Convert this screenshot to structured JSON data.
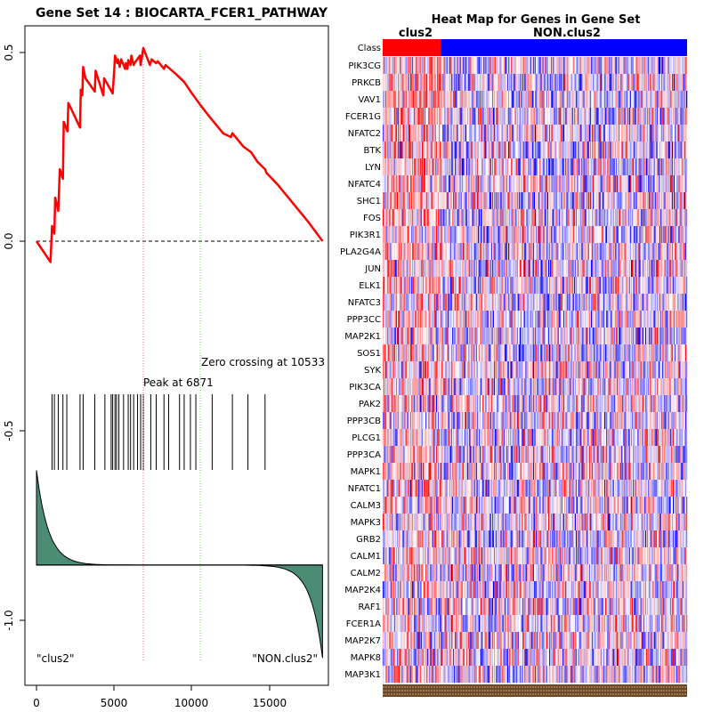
{
  "chart_data": [
    {
      "type": "line",
      "title": "Gene Set  14 : BIOCARTA_FCER1_PATHWAY",
      "xlabel": "",
      "ylabel": "",
      "xlim": [
        0,
        18500
      ],
      "ylim": [
        -1.14,
        0.57
      ],
      "x_ticks": [
        0,
        5000,
        10000,
        15000
      ],
      "x_tick_labels": [
        "0",
        "5000",
        "10000",
        "15000"
      ],
      "y_ticks": [
        -1.0,
        -0.5,
        0.0,
        0.5
      ],
      "y_tick_labels": [
        "-1.0",
        "-0.5",
        "0.0",
        "0.5"
      ],
      "enrichment_color": "#ff0000",
      "enrichment_profile": {
        "x": [
          0,
          900,
          1000,
          1150,
          1200,
          1400,
          1500,
          1700,
          1750,
          2000,
          2050,
          2800,
          2850,
          2950,
          3000,
          3150,
          3750,
          3800,
          4300,
          4350,
          4900,
          5000,
          5050,
          5200,
          5250,
          5350,
          5450,
          5700,
          5750,
          5850,
          5900,
          6050,
          6100,
          6250,
          6300,
          6650,
          6700,
          6871,
          7300,
          7400,
          7700,
          7800,
          8200,
          8300,
          9000,
          9500,
          10000,
          10533,
          11000,
          11500,
          12000,
          12500,
          12600,
          13000,
          13300,
          13800,
          14200,
          14700,
          14800,
          15500,
          16500,
          17500,
          18400
        ],
        "y": [
          0.0,
          -0.055,
          0.04,
          0.02,
          0.115,
          0.08,
          0.19,
          0.165,
          0.315,
          0.29,
          0.365,
          0.3,
          0.4,
          0.385,
          0.46,
          0.43,
          0.395,
          0.45,
          0.385,
          0.43,
          0.39,
          0.45,
          0.49,
          0.47,
          0.48,
          0.46,
          0.48,
          0.455,
          0.47,
          0.455,
          0.478,
          0.465,
          0.49,
          0.465,
          0.47,
          0.49,
          0.465,
          0.51,
          0.465,
          0.48,
          0.47,
          0.475,
          0.455,
          0.465,
          0.44,
          0.42,
          0.39,
          0.36,
          0.335,
          0.31,
          0.285,
          0.275,
          0.285,
          0.265,
          0.25,
          0.235,
          0.21,
          0.19,
          0.18,
          0.15,
          0.1,
          0.05,
          0.0
        ]
      },
      "hit_positions": [
        1000,
        1150,
        1400,
        1700,
        1950,
        2800,
        3000,
        3750,
        4400,
        4800,
        4900,
        5050,
        5150,
        5300,
        5600,
        5900,
        6050,
        6250,
        6500,
        6700,
        6871,
        7350,
        7700,
        8200,
        8500,
        9200,
        9500,
        9900,
        10250,
        11300,
        12600,
        13600,
        14700
      ],
      "peak": {
        "x": 6871,
        "label": "Peak at 6871",
        "color": "#ff6666"
      },
      "zero_crossing": {
        "x": 10533,
        "label": "Zero crossing at 10533",
        "color": "#66dd66"
      },
      "ranked_metric": {
        "color": "#4a8c74",
        "baseline": -0.855,
        "max": -0.605,
        "min": -1.1
      },
      "left_class_label": "\"clus2\"",
      "right_class_label": "\"NON.clus2\""
    },
    {
      "type": "heatmap",
      "title": "Heat Map for Genes in Gene Set",
      "class_row_label": "Class",
      "classes": [
        {
          "name": "clus2",
          "color": "#ff0000",
          "fraction": 0.19
        },
        {
          "name": "NON.clus2",
          "color": "#0000ff",
          "fraction": 0.81
        }
      ],
      "genes": [
        "PIK3CG",
        "PRKCB",
        "VAV1",
        "FCER1G",
        "NFATC2",
        "BTK",
        "LYN",
        "NFATC4",
        "SHC1",
        "FOS",
        "PIK3R1",
        "PLA2G4A",
        "JUN",
        "ELK1",
        "NFATC3",
        "PPP3CC",
        "MAP2K1",
        "SOS1",
        "SYK",
        "PIK3CA",
        "PAK2",
        "PPP3CB",
        "PLCG1",
        "PPP3CA",
        "MAPK1",
        "NFATC1",
        "CALM3",
        "MAPK3",
        "GRB2",
        "CALM1",
        "CALM2",
        "MAP2K4",
        "RAF1",
        "FCER1A",
        "MAP2K7",
        "MAPK8",
        "MAP3K1"
      ],
      "color_scale": {
        "low": "#0000ff",
        "mid": "#ffffff",
        "high": "#ff0000"
      },
      "sample_columns": 320,
      "random_seed": 14
    }
  ]
}
